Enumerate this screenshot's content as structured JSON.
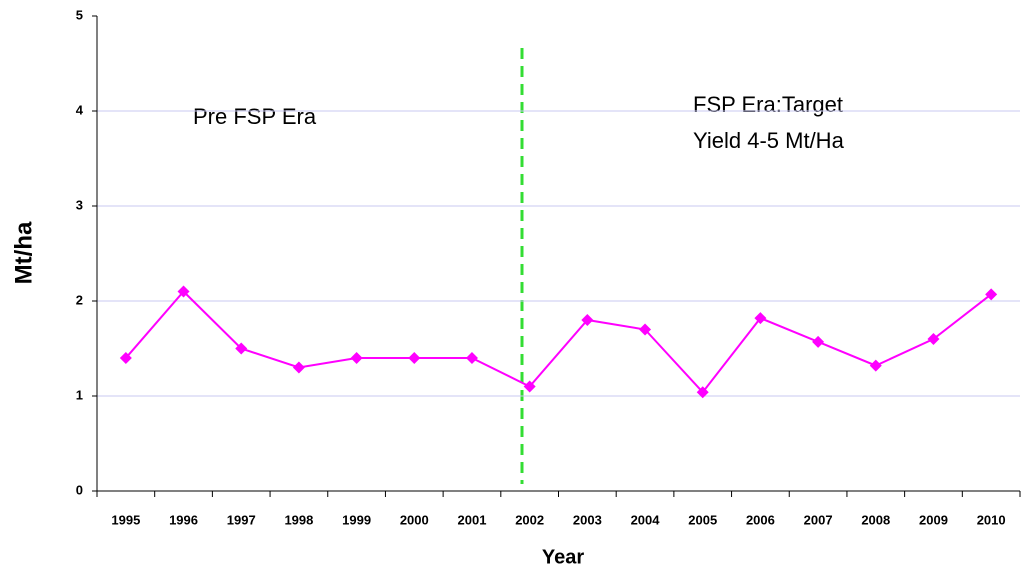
{
  "chart_data": {
    "type": "line",
    "x_label": "Year",
    "y_label": "Mt/ha",
    "annotations": [
      "Pre FSP Era",
      "FSP Era:Target",
      "Yield 4-5 Mt/Ha"
    ],
    "categories": [
      "1995",
      "1996",
      "1997",
      "1998",
      "1999",
      "2000",
      "2001",
      "2002",
      "2003",
      "2004",
      "2005",
      "2006",
      "2007",
      "2008",
      "2009",
      "2010"
    ],
    "series": [
      {
        "name": "Yield",
        "color": "#ff00ff",
        "values": [
          1.4,
          2.1,
          1.5,
          1.3,
          1.4,
          1.4,
          1.4,
          1.1,
          1.8,
          1.7,
          1.04,
          1.82,
          1.57,
          1.32,
          1.6,
          2.07
        ]
      }
    ],
    "ylim": [
      0,
      5
    ],
    "yticks": [
      0,
      1,
      2,
      3,
      4,
      5
    ],
    "grid": true
  }
}
